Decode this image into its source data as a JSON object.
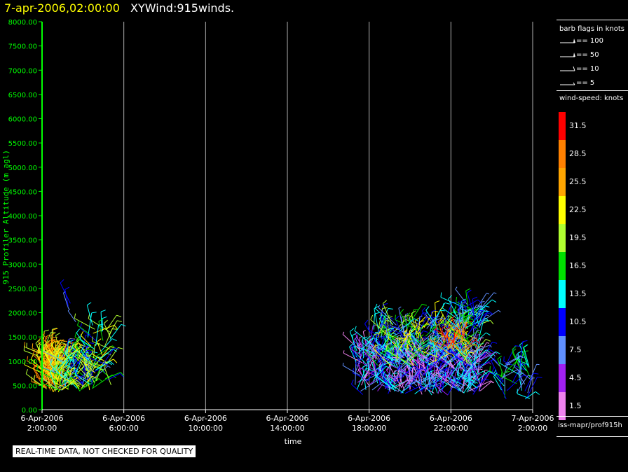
{
  "header": {
    "datetime": "7-apr-2006,02:00:00",
    "product": "XYWind:915winds."
  },
  "notice": "REAL-TIME DATA, NOT CHECKED FOR QUALITY",
  "legend": {
    "flags_title": "barb flags in knots",
    "flags": [
      {
        "value": 100,
        "label": "== 100"
      },
      {
        "value": 50,
        "label": "== 50"
      },
      {
        "value": 10,
        "label": "== 10"
      },
      {
        "value": 5,
        "label": "== 5"
      }
    ],
    "colorbar_title": "wind-speed: knots",
    "colorbar": [
      {
        "label": "31.5",
        "color": "#ff0000"
      },
      {
        "label": "28.5",
        "color": "#ff8000"
      },
      {
        "label": "25.5",
        "color": "#ffa500"
      },
      {
        "label": "22.5",
        "color": "#ffff00"
      },
      {
        "label": "19.5",
        "color": "#b0ff30"
      },
      {
        "label": "16.5",
        "color": "#00e000"
      },
      {
        "label": "13.5",
        "color": "#00ffff"
      },
      {
        "label": "10.5",
        "color": "#0000ff"
      },
      {
        "label": "7.5",
        "color": "#6090ff"
      },
      {
        "label": "4.5",
        "color": "#a020f0"
      },
      {
        "label": "1.5",
        "color": "#ee82ee"
      }
    ],
    "source": "iss-mapr/prof915h"
  },
  "colors": {
    "axis": "#00ff00",
    "grid": "#b0b0b0",
    "text": "#ffffff"
  },
  "chart_data": {
    "type": "scatter",
    "ylabel": "915 Profiler Altitude (m agl)",
    "xlabel": "time",
    "ylim": [
      0,
      8000
    ],
    "xlim": [
      0,
      24
    ],
    "y_ticks": [
      "0.00",
      "500.00",
      "1000.00",
      "1500.00",
      "2000.00",
      "2500.00",
      "3000.00",
      "3500.00",
      "4000.00",
      "4500.00",
      "5000.00",
      "5500.00",
      "6000.00",
      "6500.00",
      "7000.00",
      "7500.00",
      "8000.00"
    ],
    "x_ticks": [
      {
        "hours": 0,
        "date": "6-Apr-2006",
        "time": "2:00:00"
      },
      {
        "hours": 4,
        "date": "6-Apr-2006",
        "time": "6:00:00"
      },
      {
        "hours": 8,
        "date": "6-Apr-2006",
        "time": "10:00:00"
      },
      {
        "hours": 12,
        "date": "6-Apr-2006",
        "time": "14:00:00"
      },
      {
        "hours": 16,
        "date": "6-Apr-2006",
        "time": "18:00:00"
      },
      {
        "hours": 20,
        "date": "6-Apr-2006",
        "time": "22:00:00"
      },
      {
        "hours": 24,
        "date": "7-Apr-2006",
        "time": "2:00:00"
      }
    ],
    "grid": "vertical",
    "clusters": [
      {
        "t0": 0.0,
        "t1": 0.9,
        "z0": 350,
        "z1": 1200,
        "n": 150,
        "speeds": [
          19,
          22,
          25,
          28
        ]
      },
      {
        "t0": 0.6,
        "t1": 2.6,
        "z0": 380,
        "z1": 1100,
        "n": 110,
        "speeds": [
          8,
          11,
          14,
          17,
          20,
          23
        ]
      },
      {
        "t0": 2.0,
        "t1": 3.4,
        "z0": 500,
        "z1": 1800,
        "n": 45,
        "speeds": [
          10,
          13,
          17,
          20,
          23
        ]
      },
      {
        "t0": 1.2,
        "t1": 1.8,
        "z0": 1750,
        "z1": 2200,
        "n": 4,
        "speeds": [
          8,
          11
        ]
      },
      {
        "t0": 15.3,
        "t1": 21.5,
        "z0": 300,
        "z1": 1250,
        "n": 420,
        "speeds": [
          2,
          5,
          8,
          11,
          14
        ]
      },
      {
        "t0": 16.2,
        "t1": 21.3,
        "z0": 900,
        "z1": 1800,
        "n": 220,
        "speeds": [
          8,
          11,
          14,
          17,
          20,
          23
        ]
      },
      {
        "t0": 19.6,
        "t1": 20.6,
        "z0": 1150,
        "z1": 1500,
        "n": 25,
        "speeds": [
          26,
          29,
          32
        ]
      },
      {
        "t0": 20.3,
        "t1": 21.4,
        "z0": 1500,
        "z1": 2200,
        "n": 45,
        "speeds": [
          8,
          11,
          14,
          17
        ]
      },
      {
        "t0": 22.4,
        "t1": 24.0,
        "z0": 200,
        "z1": 950,
        "n": 45,
        "speeds": [
          8,
          11,
          14,
          17
        ]
      }
    ]
  }
}
